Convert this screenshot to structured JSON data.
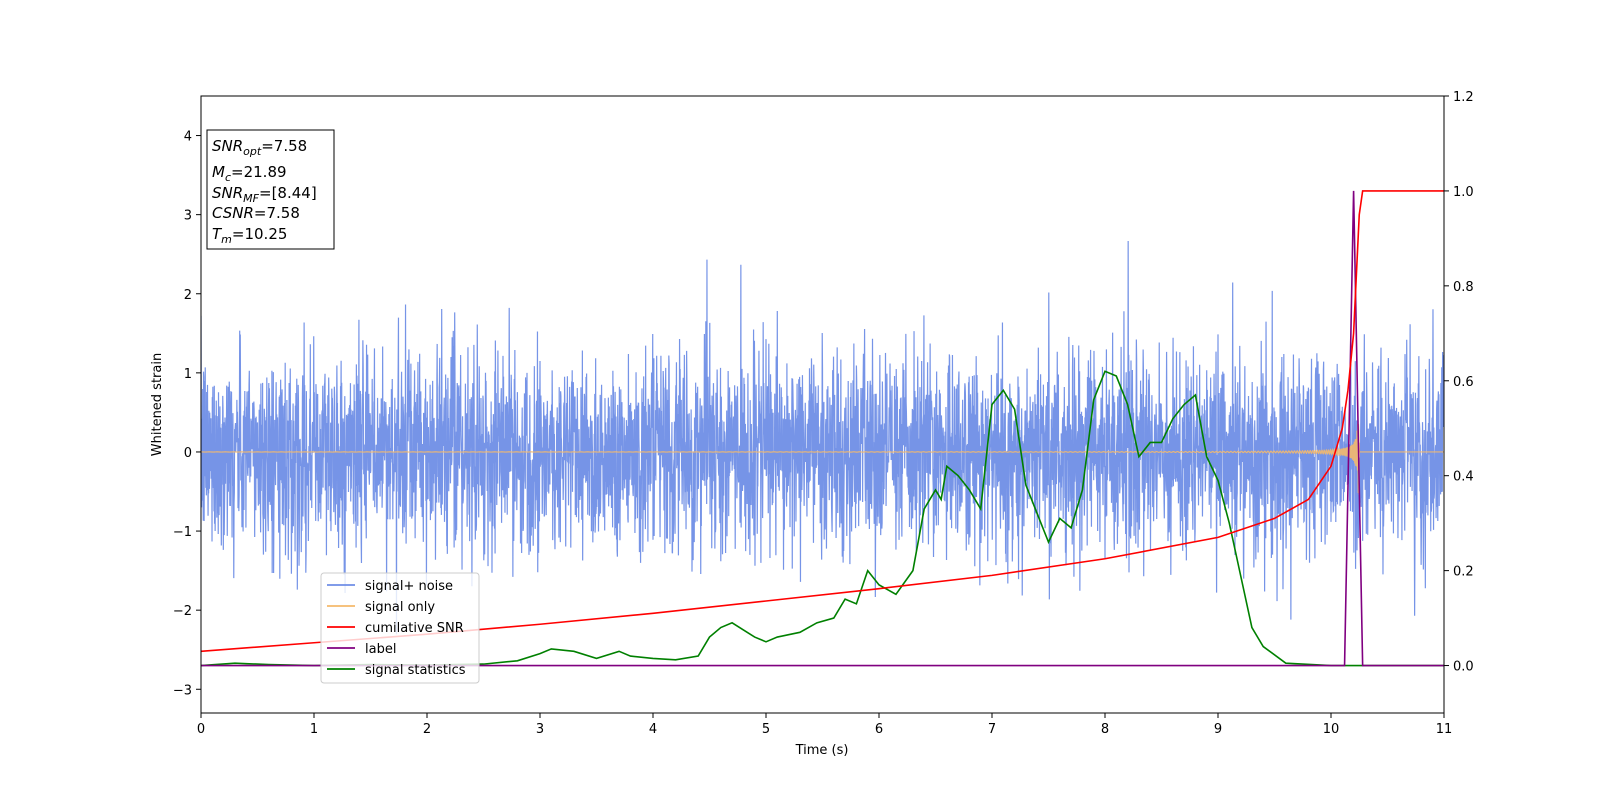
{
  "chart_data": {
    "type": "line",
    "xlabel": "Time (s)",
    "ylabel": "Whitened strain",
    "xlim": [
      0,
      11
    ],
    "ylim_left": [
      -3.3,
      4.5
    ],
    "ylim_right": [
      -0.1,
      1.2
    ],
    "x_ticks": [
      0,
      1,
      2,
      3,
      4,
      5,
      6,
      7,
      8,
      9,
      10,
      11
    ],
    "y_ticks_left": [
      -3,
      -2,
      -1,
      0,
      1,
      2,
      3,
      4
    ],
    "y_ticks_right": [
      0.0,
      0.2,
      0.4,
      0.6,
      0.8,
      1.0,
      1.2
    ],
    "grid": false,
    "legend_position": "lower-left",
    "annotation": [
      {
        "sym": "SNR",
        "sub": "opt",
        "value": "=7.58"
      },
      {
        "sym": "M",
        "sub": "c",
        "value": "=21.89"
      },
      {
        "sym": "SNR",
        "sub": "MF",
        "value": "=[8.44]"
      },
      {
        "sym": "CSNR",
        "sub": "",
        "value": "=7.58"
      },
      {
        "sym": "T",
        "sub": "m",
        "value": "=10.25"
      }
    ],
    "series": [
      {
        "name": "signal+ noise",
        "axis": "left",
        "color": "#6f8ee6",
        "description_type": "noise",
        "noise_std": 0.62,
        "noise_max": 3.3,
        "noise_min": -2.95
      },
      {
        "name": "signal only",
        "axis": "left",
        "color": "#f5b96b",
        "description_type": "chirp",
        "merger_time": 10.25,
        "peak_amplitude": 0.55
      },
      {
        "name": "cumilative SNR",
        "axis": "right",
        "color": "#ff0000",
        "x": [
          0,
          1,
          2,
          3,
          4,
          5,
          6,
          7,
          8,
          9,
          9.5,
          9.8,
          10.0,
          10.1,
          10.15,
          10.2,
          10.22,
          10.25,
          10.28,
          11
        ],
        "y": [
          0.03,
          0.048,
          0.066,
          0.087,
          0.11,
          0.136,
          0.162,
          0.19,
          0.225,
          0.27,
          0.31,
          0.35,
          0.42,
          0.5,
          0.58,
          0.7,
          0.8,
          0.95,
          1.0,
          1.0
        ]
      },
      {
        "name": "label",
        "axis": "right",
        "color": "#800080",
        "x": [
          0,
          10.12,
          10.2,
          10.28,
          11
        ],
        "y": [
          0,
          0,
          1.0,
          0,
          0
        ]
      },
      {
        "name": "signal statistics",
        "axis": "right",
        "color": "#008000",
        "x": [
          0,
          0.3,
          0.6,
          1,
          1.5,
          2,
          2.5,
          2.8,
          3.0,
          3.1,
          3.3,
          3.5,
          3.7,
          3.8,
          4.0,
          4.2,
          4.4,
          4.5,
          4.6,
          4.7,
          4.8,
          4.9,
          5.0,
          5.1,
          5.2,
          5.3,
          5.45,
          5.6,
          5.7,
          5.8,
          5.9,
          6.0,
          6.15,
          6.3,
          6.4,
          6.5,
          6.55,
          6.6,
          6.7,
          6.8,
          6.9,
          7.0,
          7.1,
          7.2,
          7.3,
          7.4,
          7.5,
          7.6,
          7.7,
          7.8,
          7.9,
          8.0,
          8.1,
          8.2,
          8.3,
          8.4,
          8.5,
          8.6,
          8.7,
          8.8,
          8.9,
          9.0,
          9.1,
          9.2,
          9.3,
          9.4,
          9.6,
          10.0,
          11
        ],
        "y": [
          0.0,
          0.005,
          0.002,
          0.0,
          0.002,
          0.001,
          0.003,
          0.01,
          0.025,
          0.035,
          0.03,
          0.015,
          0.03,
          0.02,
          0.015,
          0.012,
          0.02,
          0.06,
          0.08,
          0.09,
          0.075,
          0.06,
          0.05,
          0.06,
          0.065,
          0.07,
          0.09,
          0.1,
          0.14,
          0.13,
          0.2,
          0.17,
          0.15,
          0.2,
          0.33,
          0.37,
          0.35,
          0.42,
          0.4,
          0.37,
          0.33,
          0.55,
          0.58,
          0.54,
          0.38,
          0.32,
          0.26,
          0.31,
          0.29,
          0.37,
          0.56,
          0.62,
          0.61,
          0.55,
          0.44,
          0.47,
          0.47,
          0.52,
          0.55,
          0.57,
          0.44,
          0.39,
          0.3,
          0.19,
          0.08,
          0.04,
          0.005,
          0.0,
          0.0
        ]
      }
    ]
  }
}
